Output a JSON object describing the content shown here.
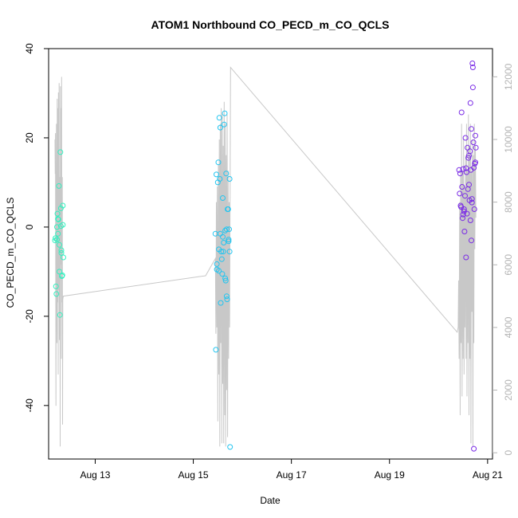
{
  "chart_data": {
    "type": "scatter",
    "title": "ATOM1 Northbound CO_PECD_m_CO_QCLS",
    "xlabel": "Date",
    "ylabel": "CO_PECD_m_CO_QCLS",
    "x_tick_labels": [
      "Aug 13",
      "Aug 15",
      "Aug 17",
      "Aug 19",
      "Aug 21"
    ],
    "x_tick_days": [
      13,
      15,
      17,
      19,
      21
    ],
    "xlim_days": [
      12.05,
      21.1
    ],
    "ylim": [
      -52,
      40
    ],
    "y_ticks": [
      -40,
      -20,
      0,
      20,
      40
    ],
    "y2lim": [
      -200,
      12900
    ],
    "y2_ticks": [
      0,
      2000,
      4000,
      6000,
      8000,
      10000,
      12000
    ],
    "grid": false,
    "legend": "none",
    "colors": {
      "group1": "#33f0c0",
      "group2": "#22c5f0",
      "group3": "#7a2be6",
      "line": "#c8c8c8"
    },
    "scatter_groups": [
      {
        "color_key": "group1",
        "points": [
          [
            12.18,
            -3.0
          ],
          [
            12.19,
            -2.5
          ],
          [
            12.2,
            -13.3
          ],
          [
            12.21,
            -15.0
          ],
          [
            12.22,
            -2.8
          ],
          [
            12.22,
            0.0
          ],
          [
            12.23,
            3.0
          ],
          [
            12.24,
            1.8
          ],
          [
            12.24,
            -1.5
          ],
          [
            12.25,
            1.7
          ],
          [
            12.26,
            9.2
          ],
          [
            12.27,
            -4.0
          ],
          [
            12.27,
            -10.0
          ],
          [
            12.28,
            -19.7
          ],
          [
            12.29,
            16.8
          ],
          [
            12.3,
            4.2
          ],
          [
            12.3,
            0.2
          ],
          [
            12.31,
            -5.2
          ],
          [
            12.31,
            -5.8
          ],
          [
            12.32,
            -11.0
          ],
          [
            12.33,
            -10.8
          ],
          [
            12.34,
            0.5
          ],
          [
            12.34,
            4.8
          ],
          [
            12.35,
            -6.8
          ]
        ]
      },
      {
        "color_key": "group2",
        "points": [
          [
            15.45,
            -1.5
          ],
          [
            15.46,
            -27.5
          ],
          [
            15.47,
            11.8
          ],
          [
            15.48,
            -9.5
          ],
          [
            15.48,
            -8.3
          ],
          [
            15.5,
            10.0
          ],
          [
            15.51,
            14.5
          ],
          [
            15.52,
            -5.0
          ],
          [
            15.52,
            -9.8
          ],
          [
            15.53,
            24.5
          ],
          [
            15.54,
            10.8
          ],
          [
            15.55,
            22.3
          ],
          [
            15.55,
            -1.5
          ],
          [
            15.56,
            -17.0
          ],
          [
            15.57,
            -5.5
          ],
          [
            15.58,
            -7.2
          ],
          [
            15.59,
            -10.5
          ],
          [
            15.6,
            -2.2
          ],
          [
            15.6,
            6.5
          ],
          [
            15.61,
            -5.5
          ],
          [
            15.62,
            -3.5
          ],
          [
            15.63,
            23.0
          ],
          [
            15.64,
            25.5
          ],
          [
            15.65,
            -0.8
          ],
          [
            15.65,
            -11.5
          ],
          [
            15.66,
            -12.0
          ],
          [
            15.67,
            12.0
          ],
          [
            15.68,
            -0.5
          ],
          [
            15.68,
            -15.5
          ],
          [
            15.69,
            -16.2
          ],
          [
            15.7,
            4.0
          ],
          [
            15.71,
            4.0
          ],
          [
            15.72,
            -2.8
          ],
          [
            15.72,
            -3.2
          ],
          [
            15.73,
            -0.5
          ],
          [
            15.74,
            10.8
          ],
          [
            15.74,
            -5.5
          ],
          [
            15.75,
            -49.3
          ]
        ]
      },
      {
        "color_key": "group3",
        "points": [
          [
            20.42,
            12.8
          ],
          [
            20.43,
            7.5
          ],
          [
            20.44,
            12.0
          ],
          [
            20.45,
            4.8
          ],
          [
            20.46,
            4.5
          ],
          [
            20.47,
            25.7
          ],
          [
            20.48,
            9.0
          ],
          [
            20.49,
            2.0
          ],
          [
            20.5,
            13.0
          ],
          [
            20.5,
            2.8
          ],
          [
            20.52,
            4.0
          ],
          [
            20.52,
            3.5
          ],
          [
            20.53,
            -1.0
          ],
          [
            20.54,
            7.0
          ],
          [
            20.55,
            20.0
          ],
          [
            20.56,
            13.2
          ],
          [
            20.56,
            -6.8
          ],
          [
            20.57,
            12.3
          ],
          [
            20.58,
            3.0
          ],
          [
            20.59,
            17.8
          ],
          [
            20.6,
            8.5
          ],
          [
            20.61,
            15.5
          ],
          [
            20.62,
            9.5
          ],
          [
            20.62,
            16.0
          ],
          [
            20.63,
            6.0
          ],
          [
            20.64,
            17.0
          ],
          [
            20.65,
            27.8
          ],
          [
            20.65,
            1.5
          ],
          [
            20.66,
            12.8
          ],
          [
            20.67,
            22.0
          ],
          [
            20.67,
            -3.0
          ],
          [
            20.68,
            5.5
          ],
          [
            20.68,
            6.3
          ],
          [
            20.69,
            36.7
          ],
          [
            20.7,
            35.8
          ],
          [
            20.7,
            31.3
          ],
          [
            20.71,
            19.0
          ],
          [
            20.72,
            13.3
          ],
          [
            20.72,
            -49.7
          ],
          [
            20.73,
            4.0
          ],
          [
            20.74,
            14.2
          ],
          [
            20.75,
            20.5
          ],
          [
            20.75,
            14.5
          ],
          [
            20.76,
            17.8
          ]
        ]
      }
    ],
    "line_series": {
      "color_key": "line",
      "axis": "right",
      "points": [
        [
          12.18,
          10000
        ],
        [
          12.185,
          8900
        ],
        [
          12.19,
          10200
        ],
        [
          12.2,
          1500
        ],
        [
          12.205,
          6200
        ],
        [
          12.21,
          10500
        ],
        [
          12.22,
          3500
        ],
        [
          12.225,
          11300
        ],
        [
          12.23,
          4800
        ],
        [
          12.24,
          11000
        ],
        [
          12.245,
          2500
        ],
        [
          12.25,
          11500
        ],
        [
          12.26,
          5200
        ],
        [
          12.265,
          11800
        ],
        [
          12.27,
          3600
        ],
        [
          12.28,
          8800
        ],
        [
          12.285,
          200
        ],
        [
          12.29,
          11700
        ],
        [
          12.3,
          6000
        ],
        [
          12.305,
          11000
        ],
        [
          12.31,
          3000
        ],
        [
          12.315,
          12000
        ],
        [
          12.32,
          4800
        ],
        [
          12.33,
          8800
        ],
        [
          12.335,
          900
        ],
        [
          12.34,
          4900
        ],
        [
          12.35,
          5000
        ],
        [
          15.25,
          5650
        ],
        [
          15.45,
          6200
        ],
        [
          15.46,
          3800
        ],
        [
          15.47,
          8000
        ],
        [
          15.48,
          4000
        ],
        [
          15.49,
          8500
        ],
        [
          15.5,
          1000
        ],
        [
          15.51,
          9200
        ],
        [
          15.52,
          2500
        ],
        [
          15.53,
          10000
        ],
        [
          15.54,
          200
        ],
        [
          15.55,
          10500
        ],
        [
          15.56,
          3500
        ],
        [
          15.57,
          11000
        ],
        [
          15.58,
          300
        ],
        [
          15.59,
          10800
        ],
        [
          15.6,
          2200
        ],
        [
          15.61,
          9800
        ],
        [
          15.62,
          300
        ],
        [
          15.63,
          11200
        ],
        [
          15.64,
          1200
        ],
        [
          15.65,
          10500
        ],
        [
          15.66,
          200
        ],
        [
          15.67,
          9500
        ],
        [
          15.68,
          2000
        ],
        [
          15.69,
          10800
        ],
        [
          15.7,
          500
        ],
        [
          15.71,
          9000
        ],
        [
          15.72,
          3000
        ],
        [
          15.73,
          8000
        ],
        [
          15.74,
          4000
        ],
        [
          15.76,
          12300
        ],
        [
          20.38,
          3850
        ],
        [
          20.4,
          4000
        ],
        [
          20.41,
          5500
        ],
        [
          20.42,
          3000
        ],
        [
          20.43,
          8000
        ],
        [
          20.44,
          1200
        ],
        [
          20.45,
          9000
        ],
        [
          20.46,
          3500
        ],
        [
          20.47,
          10500
        ],
        [
          20.48,
          1800
        ],
        [
          20.49,
          9000
        ],
        [
          20.5,
          3000
        ],
        [
          20.51,
          10000
        ],
        [
          20.52,
          2500
        ],
        [
          20.53,
          8500
        ],
        [
          20.54,
          4000
        ],
        [
          20.55,
          9500
        ],
        [
          20.56,
          3000
        ],
        [
          20.57,
          10500
        ],
        [
          20.58,
          1800
        ],
        [
          20.59,
          9000
        ],
        [
          20.6,
          3500
        ],
        [
          20.61,
          10800
        ],
        [
          20.62,
          1200
        ],
        [
          20.63,
          9800
        ],
        [
          20.64,
          3000
        ],
        [
          20.65,
          10500
        ],
        [
          20.66,
          300
        ],
        [
          20.67,
          9000
        ],
        [
          20.68,
          4500
        ],
        [
          20.69,
          10000
        ],
        [
          20.7,
          200
        ],
        [
          20.71,
          9500
        ],
        [
          20.72,
          3500
        ],
        [
          20.73,
          10500
        ],
        [
          20.74,
          6500
        ],
        [
          20.75,
          9800
        ],
        [
          20.76,
          7500
        ]
      ]
    }
  }
}
